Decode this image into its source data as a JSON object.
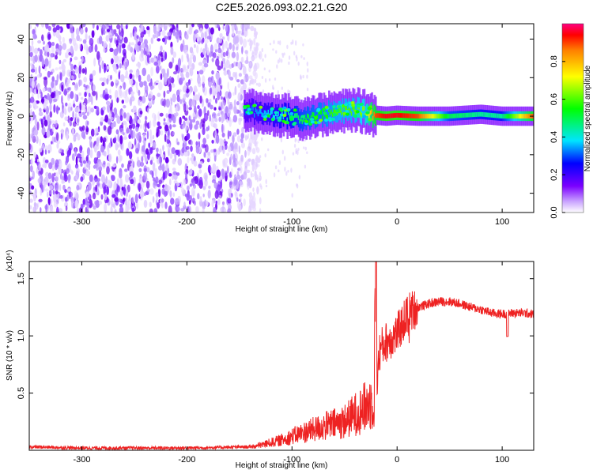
{
  "figure_title": "C2E5.2026.093.02.21.G20",
  "chart_data": [
    {
      "type": "heatmap",
      "title": "C2E5.2026.093.02.21.G20",
      "xlabel": "Height of straight line (km)",
      "ylabel": "Frequency (Hz)",
      "xlim": [
        -350,
        130
      ],
      "ylim": [
        -50,
        48
      ],
      "xticks": [
        -300,
        -200,
        -100,
        0,
        100
      ],
      "xtick_labels": [
        "-300",
        "-200",
        "-100",
        "0",
        "100"
      ],
      "yticks": [
        -40,
        -20,
        0,
        20,
        40
      ],
      "ytick_labels": [
        "-40",
        "-20",
        "0",
        "20",
        "40"
      ],
      "colorbar": {
        "label": "Normalized spectral amplitude",
        "range": [
          0,
          1
        ],
        "ticks": [
          0.0,
          0.2,
          0.4,
          0.6,
          0.8
        ],
        "tick_labels": [
          "0.0",
          "0.2",
          "0.4",
          "0.6",
          "0.8"
        ],
        "colormap": [
          "#ffffff",
          "#7b00ff",
          "#0000ff",
          "#00e5ff",
          "#00ff00",
          "#ffff00",
          "#ff7f00",
          "#ff0000",
          "#ff0080"
        ]
      },
      "noise_region_x": [
        -350,
        -145
      ],
      "signal_track": {
        "x": [
          -145,
          -130,
          -110,
          -90,
          -70,
          -55,
          -40,
          -30,
          -20,
          -10,
          0,
          20,
          50,
          80,
          100,
          130
        ],
        "freq": [
          3,
          2,
          0.5,
          -1,
          1,
          2,
          3.5,
          2,
          0.5,
          0,
          0.5,
          0,
          0,
          1,
          0,
          0
        ],
        "amplitude": [
          0.3,
          0.35,
          0.4,
          0.5,
          0.55,
          0.6,
          0.6,
          0.65,
          0.9,
          0.95,
          0.95,
          0.9,
          0.5,
          0.45,
          0.45,
          0.9
        ]
      }
    },
    {
      "type": "line",
      "xlabel": "Height of straight line (km)",
      "ylabel": "SNR (10 * v/v)",
      "multiplier": "(x10⁴)",
      "xlim": [
        -350,
        130
      ],
      "ylim": [
        0,
        1.65
      ],
      "xticks": [
        -300,
        -200,
        -100,
        0,
        100
      ],
      "xtick_labels": [
        "-300",
        "-200",
        "-100",
        "0",
        "100"
      ],
      "yticks": [
        0.5,
        1.0,
        1.5
      ],
      "ytick_labels": [
        "0.5",
        "1.0",
        "1.5"
      ],
      "color": "#ee2222",
      "series": [
        {
          "name": "SNR",
          "x": [
            -350,
            -300,
            -200,
            -140,
            -130,
            -110,
            -90,
            -70,
            -50,
            -40,
            -30,
            -22,
            -20,
            -19,
            -17,
            -15,
            -10,
            -5,
            0,
            5,
            10,
            20,
            30,
            40,
            50,
            60,
            70,
            80,
            90,
            100,
            110,
            120,
            130
          ],
          "y": [
            0.03,
            0.02,
            0.02,
            0.03,
            0.05,
            0.1,
            0.17,
            0.23,
            0.28,
            0.35,
            0.42,
            0.5,
            1.65,
            0.6,
            0.85,
            0.9,
            0.95,
            0.98,
            1.02,
            1.1,
            1.2,
            1.25,
            1.28,
            1.3,
            1.3,
            1.28,
            1.25,
            1.23,
            1.2,
            1.19,
            1.2,
            1.2,
            1.19
          ]
        }
      ]
    }
  ]
}
